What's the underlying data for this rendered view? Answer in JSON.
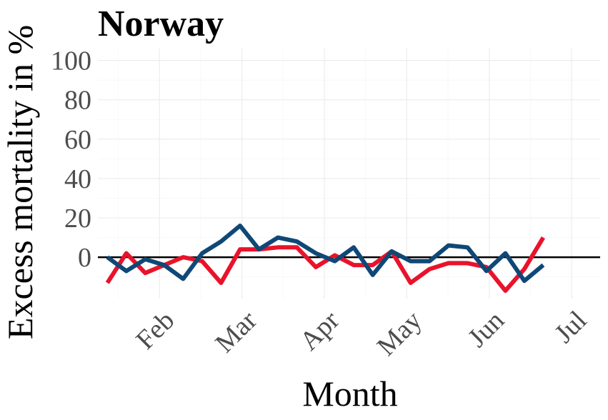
{
  "chart_data": {
    "type": "line",
    "title": "Norway",
    "xlabel": "Month",
    "ylabel": "Excess mortality in %",
    "x_tick_labels": [
      "Feb",
      "Mar",
      "Apr",
      "May",
      "Jun",
      "Jul"
    ],
    "y_ticks": [
      0,
      20,
      40,
      60,
      80,
      100
    ],
    "ylim": [
      -21,
      106
    ],
    "x_range_weeks": [
      0,
      26.5
    ],
    "grid": true,
    "legend": "none",
    "zero_line": true,
    "series": [
      {
        "color": "#e8132a",
        "x": [
          0.5,
          1.5,
          2.5,
          3.5,
          4.5,
          5.5,
          6.5,
          7.5,
          8.5,
          9.5,
          10.5,
          11.5,
          12.5,
          13.5,
          14.5,
          15.5,
          16.5,
          17.5,
          18.5,
          19.5,
          20.5,
          21.5,
          22.5,
          23.5,
          24.5,
          25.5
        ],
        "values": [
          -13,
          2,
          -8,
          -4,
          0,
          -2,
          -13,
          4,
          4,
          5,
          5,
          -5,
          1,
          -4,
          -4,
          3,
          -13,
          -6,
          -3,
          -3,
          -5,
          -17,
          -6,
          10,
          null,
          null
        ]
      },
      {
        "color": "#0f4876",
        "x": [
          0.5,
          1.5,
          2.5,
          3.5,
          4.5,
          5.5,
          6.5,
          7.5,
          8.5,
          9.5,
          10.5,
          11.5,
          12.5,
          13.5,
          14.5,
          15.5,
          16.5,
          17.5,
          18.5,
          19.5,
          20.5,
          21.5,
          22.5,
          23.5,
          24.5,
          25.5
        ],
        "values": [
          0,
          -7,
          -1,
          -4,
          -11,
          2,
          8,
          16,
          4,
          10,
          8,
          2,
          -2,
          5,
          -9,
          3,
          -2,
          -2,
          6,
          5,
          -7,
          2,
          -12,
          -4,
          null,
          null
        ]
      }
    ]
  }
}
